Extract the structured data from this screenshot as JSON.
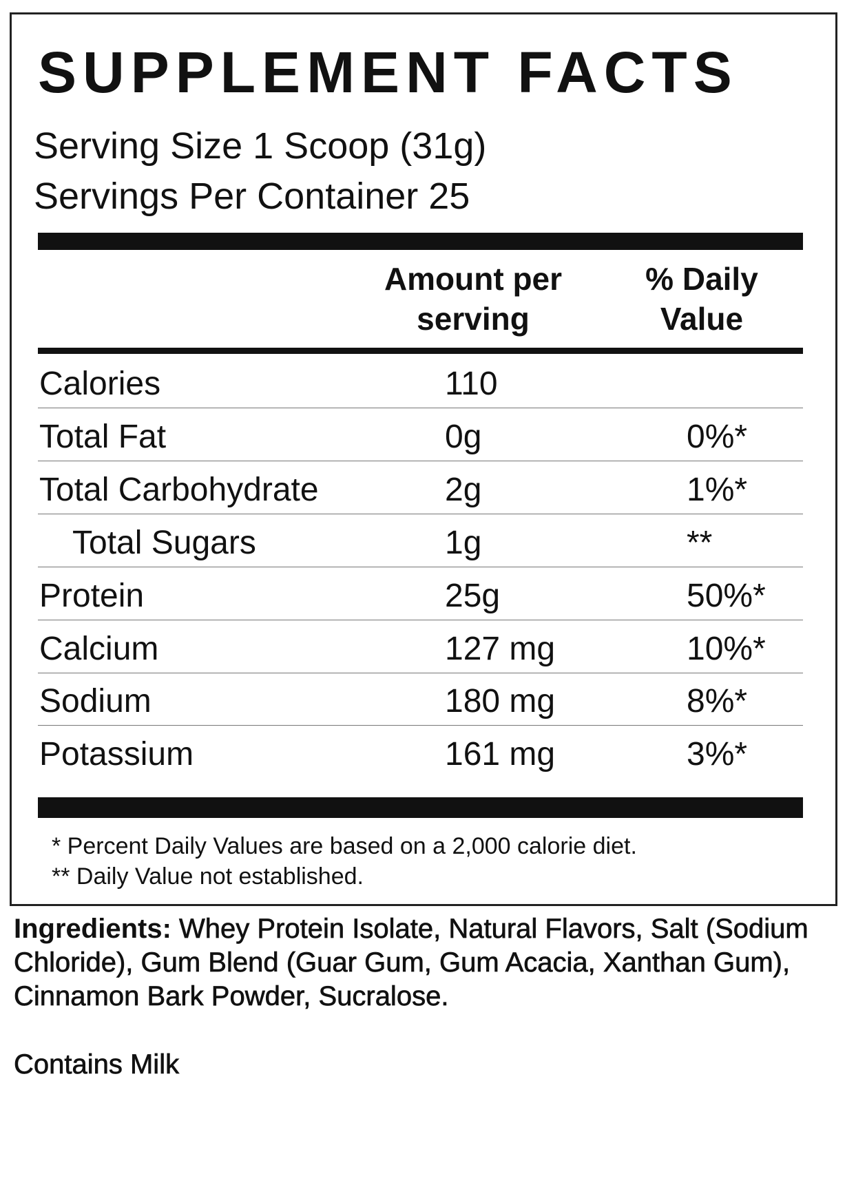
{
  "header": {
    "title": "SUPPLEMENT FACTS",
    "serving_size": "Serving Size 1 Scoop (31g)",
    "servings_per_container": "Servings Per Container 25"
  },
  "table": {
    "columns": [
      "Amount per serving",
      "% Daily Value"
    ],
    "rows": [
      {
        "name": "Calories",
        "amount": "110",
        "daily_value": null,
        "indent": false
      },
      {
        "name": "Total Fat",
        "amount": "0g",
        "daily_value": "0%*",
        "indent": false
      },
      {
        "name": "Total Carbohydrate",
        "amount": "2g",
        "daily_value": "1%*",
        "indent": false
      },
      {
        "name": "Total Sugars",
        "amount": "1g",
        "daily_value": "**",
        "indent": true
      },
      {
        "name": "Protein",
        "amount": "25g",
        "daily_value": "50%*",
        "indent": false
      },
      {
        "name": "Calcium",
        "amount": "127 mg",
        "daily_value": "10%*",
        "indent": false
      },
      {
        "name": "Sodium",
        "amount": "180 mg",
        "daily_value": "8%*",
        "indent": false
      },
      {
        "name": "Potassium",
        "amount": "161 mg",
        "daily_value": "3%*",
        "indent": false
      }
    ]
  },
  "footnotes": [
    "* Percent Daily Values are based on a 2,000 calorie diet.",
    "** Daily Value not established."
  ],
  "ingredients": {
    "label": "Ingredients:",
    "text": "Whey Protein Isolate, Natural Flavors, Salt (Sodium Chloride), Gum Blend (Guar Gum, Gum Acacia, Xanthan Gum), Cinnamon Bark Powder, Sucralose."
  },
  "allergens": "Contains Milk"
}
